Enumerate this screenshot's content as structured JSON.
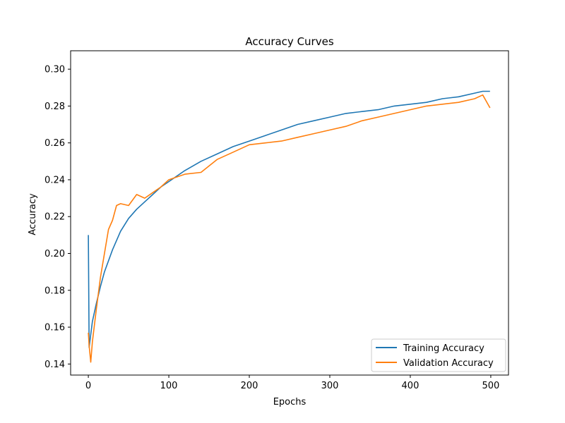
{
  "chart_data": {
    "type": "line",
    "title": "Accuracy Curves",
    "xlabel": "Epochs",
    "ylabel": "Accuracy",
    "xlim": [
      -22,
      522
    ],
    "ylim": [
      0.134,
      0.31
    ],
    "x_ticks": [
      0,
      100,
      200,
      300,
      400,
      500
    ],
    "y_ticks": [
      0.14,
      0.16,
      0.18,
      0.2,
      0.22,
      0.24,
      0.26,
      0.28,
      0.3
    ],
    "x_tick_labels": [
      "0",
      "100",
      "200",
      "300",
      "400",
      "500"
    ],
    "y_tick_labels": [
      "0.14",
      "0.16",
      "0.18",
      "0.20",
      "0.22",
      "0.24",
      "0.26",
      "0.28",
      "0.30"
    ],
    "grid": false,
    "legend_position": "lower-right",
    "x": [
      0,
      1,
      3,
      5,
      10,
      15,
      20,
      25,
      30,
      35,
      40,
      50,
      60,
      70,
      80,
      90,
      100,
      120,
      140,
      160,
      180,
      200,
      220,
      240,
      260,
      280,
      300,
      320,
      340,
      360,
      380,
      400,
      420,
      440,
      460,
      480,
      490,
      499
    ],
    "series": [
      {
        "name": "Training Accuracy",
        "color": "#1f77b4",
        "values": [
          0.21,
          0.149,
          0.156,
          0.163,
          0.173,
          0.182,
          0.19,
          0.196,
          0.202,
          0.207,
          0.212,
          0.219,
          0.224,
          0.228,
          0.232,
          0.236,
          0.239,
          0.245,
          0.25,
          0.254,
          0.258,
          0.261,
          0.264,
          0.267,
          0.27,
          0.272,
          0.274,
          0.276,
          0.277,
          0.278,
          0.28,
          0.281,
          0.282,
          0.284,
          0.285,
          0.287,
          0.288,
          0.288
        ]
      },
      {
        "name": "Validation Accuracy",
        "color": "#ff7f0e",
        "values": [
          0.157,
          0.15,
          0.141,
          0.152,
          0.17,
          0.187,
          0.2,
          0.213,
          0.218,
          0.226,
          0.227,
          0.226,
          0.232,
          0.23,
          0.233,
          0.236,
          0.24,
          0.243,
          0.244,
          0.251,
          0.255,
          0.259,
          0.26,
          0.261,
          0.263,
          0.265,
          0.267,
          0.269,
          0.272,
          0.274,
          0.276,
          0.278,
          0.28,
          0.281,
          0.282,
          0.284,
          0.286,
          0.279
        ]
      }
    ]
  }
}
